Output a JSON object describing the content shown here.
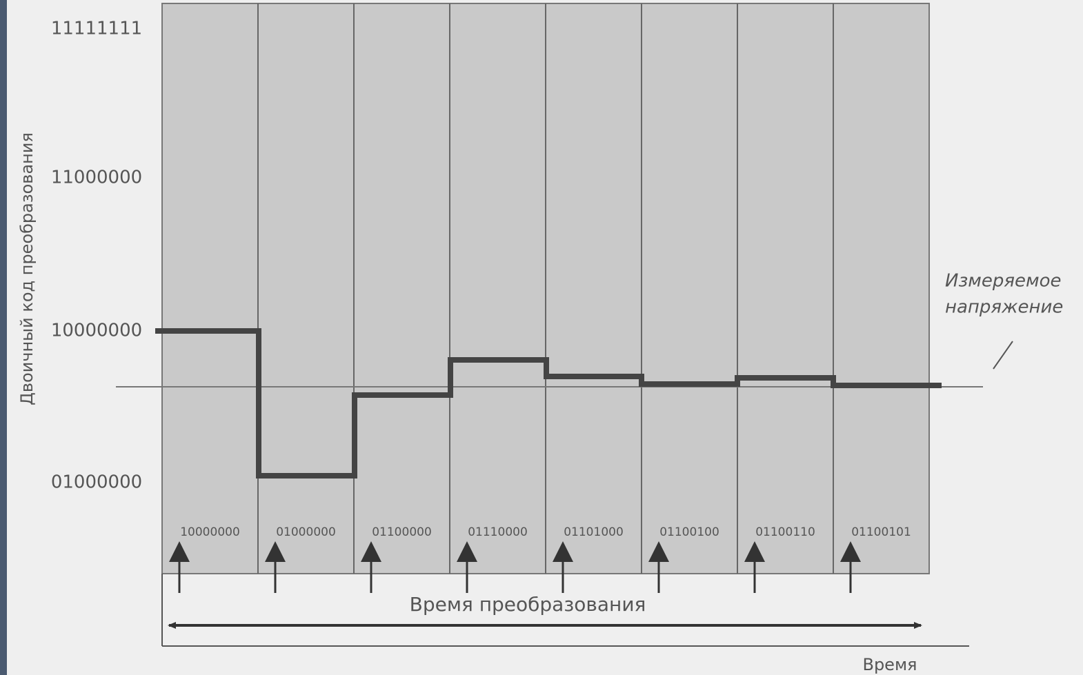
{
  "y_axis": {
    "title": "Двоичный код преобразования",
    "labels": [
      "11111111",
      "11000000",
      "10000000",
      "01000000"
    ]
  },
  "codes": [
    "10000000",
    "01000000",
    "01100000",
    "01110000",
    "01101000",
    "01100100",
    "01100110",
    "01100101"
  ],
  "conversion_time": "Время преобразования",
  "time_axis": "Время",
  "measured_voltage": [
    "Измеряемое",
    "напряжение"
  ]
}
